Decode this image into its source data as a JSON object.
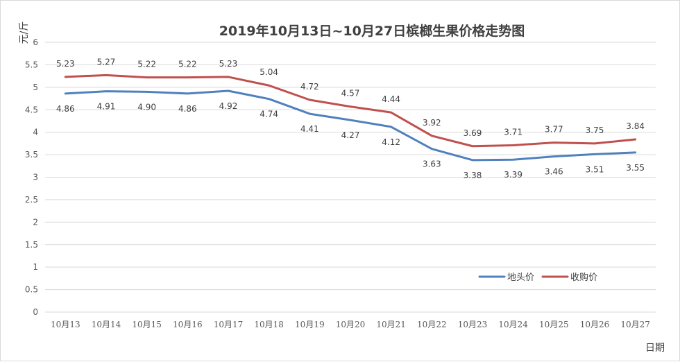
{
  "chart_data": {
    "type": "line",
    "title": "2019年10月13日~10月27日槟榔生果价格走势图",
    "ylabel": "元/斤",
    "xlabel": "日期",
    "ylim": [
      0,
      6
    ],
    "yticks": [
      "0",
      "0.5",
      "1",
      "1.5",
      "2",
      "2.5",
      "3",
      "3.5",
      "4",
      "4.5",
      "5",
      "5.5",
      "6"
    ],
    "grid": true,
    "legend_position": "bottom-right",
    "categories": [
      "10月13",
      "10月14",
      "10月15",
      "10月16",
      "10月17",
      "10月18",
      "10月19",
      "10月20",
      "10月21",
      "10月22",
      "10月23",
      "10月24",
      "10月25",
      "10月26",
      "10月27"
    ],
    "series": [
      {
        "name": "地头价",
        "color": "#4f81bd",
        "values": [
          4.86,
          4.91,
          4.9,
          4.86,
          4.92,
          4.74,
          4.41,
          4.27,
          4.12,
          3.63,
          3.38,
          3.39,
          3.46,
          3.51,
          3.55
        ],
        "labels": [
          "4.86",
          "4.91",
          "4.90",
          "4.86",
          "4.92",
          "4.74",
          "4.41",
          "4.27",
          "4.12",
          "3.63",
          "3.38",
          "3.39",
          "3.46",
          "3.51",
          "3.55"
        ]
      },
      {
        "name": "收购价",
        "color": "#c0504d",
        "values": [
          5.23,
          5.27,
          5.22,
          5.22,
          5.23,
          5.04,
          4.72,
          4.57,
          4.44,
          3.92,
          3.69,
          3.71,
          3.77,
          3.75,
          3.84
        ],
        "labels": [
          "5.23",
          "5.27",
          "5.22",
          "5.22",
          "5.23",
          "5.04",
          "4.72",
          "4.57",
          "4.44",
          "3.92",
          "3.69",
          "3.71",
          "3.77",
          "3.75",
          "3.84"
        ]
      }
    ]
  }
}
